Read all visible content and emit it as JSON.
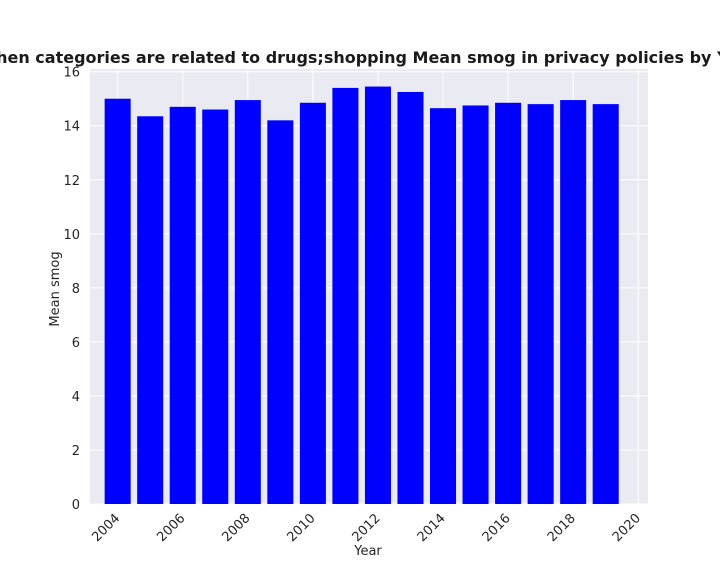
{
  "chart_data": {
    "type": "bar",
    "title": "when categories are related to drugs;shopping Mean smog in privacy policies by Year",
    "xlabel": "Year",
    "ylabel": "Mean smog",
    "x": [
      2004,
      2005,
      2006,
      2007,
      2008,
      2009,
      2010,
      2011,
      2012,
      2013,
      2014,
      2015,
      2016,
      2017,
      2018,
      2019
    ],
    "values": [
      15.0,
      14.35,
      14.7,
      14.6,
      14.95,
      14.2,
      14.85,
      15.4,
      15.45,
      15.25,
      14.65,
      14.75,
      14.85,
      14.8,
      14.95,
      14.8
    ],
    "xlim": [
      2003.15,
      2020.3
    ],
    "ylim": [
      0,
      16.1
    ],
    "xticks": [
      2004,
      2006,
      2008,
      2010,
      2012,
      2014,
      2016,
      2018,
      2020
    ],
    "yticks": [
      0,
      2,
      4,
      6,
      8,
      10,
      12,
      14,
      16
    ],
    "bar_width": 0.8,
    "bar_color": "#0000ff",
    "plot_background": "#eaeaf2",
    "grid_color": "#ffffff",
    "grid": true
  }
}
